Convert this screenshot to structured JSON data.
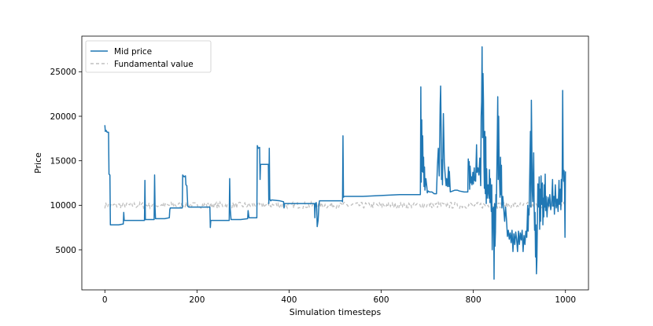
{
  "chart_data": {
    "type": "line",
    "title": "",
    "xlabel": "Simulation timesteps",
    "ylabel": "Price",
    "xlim": [
      -50,
      1050
    ],
    "ylim": [
      500,
      29000
    ],
    "xticks": [
      0,
      200,
      400,
      600,
      800,
      1000
    ],
    "yticks": [
      5000,
      10000,
      15000,
      20000,
      25000
    ],
    "grid": false,
    "legend_position": "top-left",
    "series": [
      {
        "name": "Mid price",
        "color": "#1f77b4",
        "style": "solid",
        "points": [
          [
            0,
            19000
          ],
          [
            1,
            18300
          ],
          [
            3,
            18400
          ],
          [
            5,
            18200
          ],
          [
            8,
            18200
          ],
          [
            9,
            13500
          ],
          [
            11,
            13400
          ],
          [
            12,
            7800
          ],
          [
            20,
            7800
          ],
          [
            30,
            7800
          ],
          [
            40,
            7900
          ],
          [
            41,
            9200
          ],
          [
            42,
            8300
          ],
          [
            60,
            8300
          ],
          [
            80,
            8300
          ],
          [
            86,
            8300
          ],
          [
            87,
            12800
          ],
          [
            88,
            8400
          ],
          [
            107,
            8400
          ],
          [
            108,
            13400
          ],
          [
            109,
            9700
          ],
          [
            110,
            8500
          ],
          [
            130,
            8500
          ],
          [
            140,
            8600
          ],
          [
            141,
            9500
          ],
          [
            142,
            9700
          ],
          [
            160,
            9700
          ],
          [
            168,
            9700
          ],
          [
            169,
            13400
          ],
          [
            172,
            13200
          ],
          [
            175,
            13300
          ],
          [
            176,
            12300
          ],
          [
            178,
            12200
          ],
          [
            180,
            9900
          ],
          [
            182,
            9800
          ],
          [
            200,
            9800
          ],
          [
            215,
            9800
          ],
          [
            228,
            9800
          ],
          [
            229,
            7500
          ],
          [
            230,
            8300
          ],
          [
            250,
            8300
          ],
          [
            270,
            8300
          ],
          [
            271,
            13000
          ],
          [
            272,
            9700
          ],
          [
            274,
            8400
          ],
          [
            295,
            8400
          ],
          [
            310,
            8500
          ],
          [
            311,
            9400
          ],
          [
            313,
            8600
          ],
          [
            325,
            8600
          ],
          [
            330,
            8600
          ],
          [
            331,
            16700
          ],
          [
            333,
            16400
          ],
          [
            336,
            16500
          ],
          [
            337,
            12900
          ],
          [
            338,
            14600
          ],
          [
            350,
            14600
          ],
          [
            355,
            14600
          ],
          [
            356,
            10200
          ],
          [
            357,
            16400
          ],
          [
            358,
            10700
          ],
          [
            360,
            10500
          ],
          [
            362,
            10600
          ],
          [
            380,
            10500
          ],
          [
            388,
            10400
          ],
          [
            389,
            9700
          ],
          [
            390,
            10200
          ],
          [
            400,
            10200
          ],
          [
            410,
            10200
          ],
          [
            430,
            10200
          ],
          [
            440,
            10200
          ],
          [
            455,
            10200
          ],
          [
            456,
            8600
          ],
          [
            457,
            10200
          ],
          [
            459,
            10300
          ],
          [
            460,
            9600
          ],
          [
            461,
            7600
          ],
          [
            463,
            8300
          ],
          [
            465,
            10200
          ],
          [
            466,
            10500
          ],
          [
            480,
            10500
          ],
          [
            500,
            10500
          ],
          [
            515,
            10500
          ],
          [
            516,
            10400
          ],
          [
            517,
            17800
          ],
          [
            518,
            10900
          ],
          [
            520,
            11000
          ],
          [
            560,
            11000
          ],
          [
            600,
            11100
          ],
          [
            640,
            11200
          ],
          [
            680,
            11200
          ],
          [
            685,
            11200
          ],
          [
            686,
            23300
          ],
          [
            687,
            12600
          ],
          [
            688,
            19600
          ],
          [
            689,
            13800
          ],
          [
            690,
            17800
          ],
          [
            691,
            13700
          ],
          [
            692,
            15400
          ],
          [
            693,
            12100
          ],
          [
            694,
            14300
          ],
          [
            695,
            11700
          ],
          [
            697,
            13000
          ],
          [
            699,
            12100
          ],
          [
            700,
            11400
          ],
          [
            702,
            11600
          ],
          [
            705,
            11500
          ],
          [
            710,
            11500
          ],
          [
            715,
            11300
          ],
          [
            720,
            11300
          ],
          [
            722,
            14400
          ],
          [
            724,
            16400
          ],
          [
            726,
            13300
          ],
          [
            728,
            21300
          ],
          [
            729,
            23400
          ],
          [
            730,
            19000
          ],
          [
            731,
            12900
          ],
          [
            732,
            15100
          ],
          [
            733,
            12300
          ],
          [
            735,
            20300
          ],
          [
            737,
            14800
          ],
          [
            739,
            13300
          ],
          [
            741,
            12200
          ],
          [
            742,
            13000
          ],
          [
            744,
            12100
          ],
          [
            746,
            14300
          ],
          [
            747,
            12100
          ],
          [
            748,
            13800
          ],
          [
            750,
            11500
          ],
          [
            755,
            11600
          ],
          [
            760,
            11700
          ],
          [
            765,
            11700
          ],
          [
            770,
            11600
          ],
          [
            780,
            11500
          ],
          [
            788,
            11500
          ],
          [
            789,
            15200
          ],
          [
            790,
            14500
          ],
          [
            791,
            14900
          ],
          [
            792,
            11800
          ],
          [
            793,
            14400
          ],
          [
            795,
            12500
          ],
          [
            796,
            13200
          ],
          [
            797,
            12300
          ],
          [
            799,
            13700
          ],
          [
            800,
            12400
          ],
          [
            802,
            14200
          ],
          [
            803,
            12800
          ],
          [
            805,
            12700
          ],
          [
            807,
            16800
          ],
          [
            808,
            13700
          ],
          [
            810,
            14200
          ],
          [
            812,
            13400
          ],
          [
            814,
            15300
          ],
          [
            816,
            12200
          ],
          [
            817,
            20000
          ],
          [
            818,
            21600
          ],
          [
            819,
            27800
          ],
          [
            820,
            17600
          ],
          [
            821,
            24800
          ],
          [
            822,
            21700
          ],
          [
            823,
            14900
          ],
          [
            824,
            11900
          ],
          [
            825,
            18300
          ],
          [
            826,
            11300
          ],
          [
            827,
            17700
          ],
          [
            828,
            10200
          ],
          [
            829,
            14100
          ],
          [
            830,
            10800
          ],
          [
            832,
            12300
          ],
          [
            834,
            10800
          ],
          [
            835,
            14000
          ],
          [
            836,
            10300
          ],
          [
            837,
            13000
          ],
          [
            838,
            11000
          ],
          [
            839,
            9300
          ],
          [
            840,
            12300
          ],
          [
            841,
            5000
          ],
          [
            842,
            8300
          ],
          [
            843,
            9700
          ],
          [
            844,
            9800
          ],
          [
            845,
            1700
          ],
          [
            846,
            10200
          ],
          [
            847,
            5400
          ],
          [
            848,
            7000
          ],
          [
            849,
            11200
          ],
          [
            850,
            9800
          ],
          [
            852,
            17600
          ],
          [
            853,
            22200
          ],
          [
            854,
            12900
          ],
          [
            855,
            20000
          ],
          [
            856,
            14700
          ],
          [
            857,
            12600
          ],
          [
            858,
            10900
          ],
          [
            859,
            15400
          ],
          [
            860,
            11200
          ],
          [
            861,
            14500
          ],
          [
            862,
            9700
          ],
          [
            864,
            11000
          ],
          [
            866,
            9600
          ],
          [
            868,
            8200
          ],
          [
            870,
            9800
          ],
          [
            872,
            8400
          ],
          [
            874,
            6500
          ],
          [
            876,
            7200
          ],
          [
            878,
            6200
          ],
          [
            880,
            6900
          ],
          [
            882,
            5800
          ],
          [
            884,
            7200
          ],
          [
            886,
            4800
          ],
          [
            888,
            6800
          ],
          [
            890,
            5600
          ],
          [
            892,
            7000
          ],
          [
            894,
            6200
          ],
          [
            896,
            4800
          ],
          [
            898,
            7100
          ],
          [
            900,
            5600
          ],
          [
            902,
            6900
          ],
          [
            904,
            6100
          ],
          [
            906,
            7200
          ],
          [
            908,
            4800
          ],
          [
            910,
            6600
          ],
          [
            912,
            5600
          ],
          [
            914,
            7100
          ],
          [
            916,
            6400
          ],
          [
            918,
            10000
          ],
          [
            919,
            7100
          ],
          [
            920,
            9600
          ],
          [
            921,
            8900
          ],
          [
            924,
            18300
          ],
          [
            925,
            9800
          ],
          [
            926,
            21800
          ],
          [
            927,
            16500
          ],
          [
            928,
            11600
          ],
          [
            929,
            10400
          ],
          [
            930,
            13200
          ],
          [
            931,
            15900
          ],
          [
            932,
            10000
          ],
          [
            933,
            7200
          ],
          [
            934,
            9200
          ],
          [
            935,
            4200
          ],
          [
            936,
            7800
          ],
          [
            937,
            2300
          ],
          [
            938,
            3900
          ],
          [
            939,
            7800
          ],
          [
            940,
            12400
          ],
          [
            941,
            9800
          ],
          [
            942,
            11100
          ],
          [
            943,
            13200
          ],
          [
            944,
            7300
          ],
          [
            945,
            11800
          ],
          [
            946,
            8200
          ],
          [
            947,
            13300
          ],
          [
            948,
            10100
          ],
          [
            950,
            12500
          ],
          [
            951,
            7800
          ],
          [
            952,
            10800
          ],
          [
            953,
            8700
          ],
          [
            954,
            12300
          ],
          [
            955,
            9800
          ],
          [
            956,
            13500
          ],
          [
            957,
            9400
          ],
          [
            958,
            11000
          ],
          [
            960,
            8700
          ],
          [
            962,
            10900
          ],
          [
            964,
            9900
          ],
          [
            966,
            11200
          ],
          [
            968,
            9500
          ],
          [
            970,
            10200
          ],
          [
            972,
            12900
          ],
          [
            973,
            9900
          ],
          [
            975,
            11000
          ],
          [
            976,
            9000
          ],
          [
            978,
            12300
          ],
          [
            980,
            9700
          ],
          [
            982,
            10700
          ],
          [
            984,
            9300
          ],
          [
            986,
            12800
          ],
          [
            987,
            10100
          ],
          [
            989,
            11800
          ],
          [
            990,
            9500
          ],
          [
            991,
            12900
          ],
          [
            992,
            10400
          ],
          [
            993,
            14000
          ],
          [
            994,
            22900
          ],
          [
            995,
            14200
          ],
          [
            996,
            12700
          ],
          [
            997,
            13900
          ],
          [
            998,
            12000
          ],
          [
            999,
            6400
          ],
          [
            1000,
            13800
          ]
        ]
      },
      {
        "name": "Fundamental value",
        "color": "#bfbfbf",
        "style": "dashed",
        "base": 10000,
        "noise": 350,
        "x_range": [
          0,
          1000
        ]
      }
    ]
  }
}
